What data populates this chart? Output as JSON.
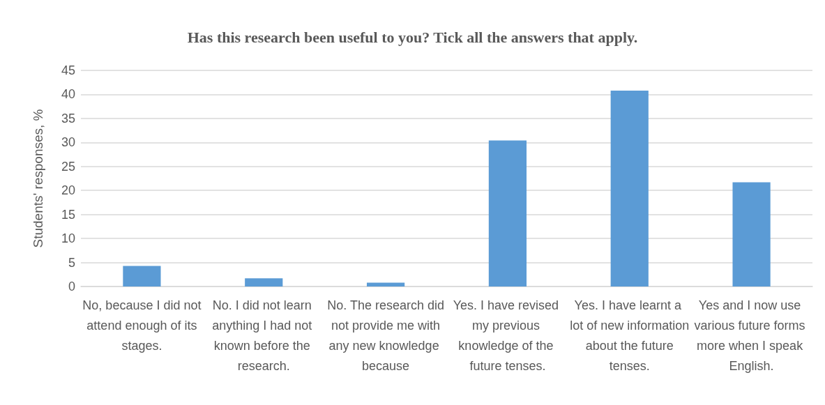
{
  "chart_data": {
    "type": "bar",
    "title": "Has this research been useful to you? Tick all the answers that apply.",
    "ylabel": "Students' responses, %",
    "categories": [
      "No, because I did not attend enough of its stages.",
      "No. I did not learn anything I had not known before the research.",
      "No. The research did not provide me with any new knowledge because",
      "Yes. I have revised my previous knowledge of the future tenses.",
      "Yes. I have learnt a lot of new information about the future tenses.",
      "Yes and I now use various future forms more when I speak English."
    ],
    "values": [
      4.3,
      1.7,
      0.8,
      30.4,
      40.8,
      21.7
    ],
    "color": "#5b9bd5",
    "ylim": [
      0,
      45
    ],
    "yticks": [
      0,
      5,
      10,
      15,
      20,
      25,
      30,
      35,
      40,
      45
    ],
    "grid": "y"
  }
}
